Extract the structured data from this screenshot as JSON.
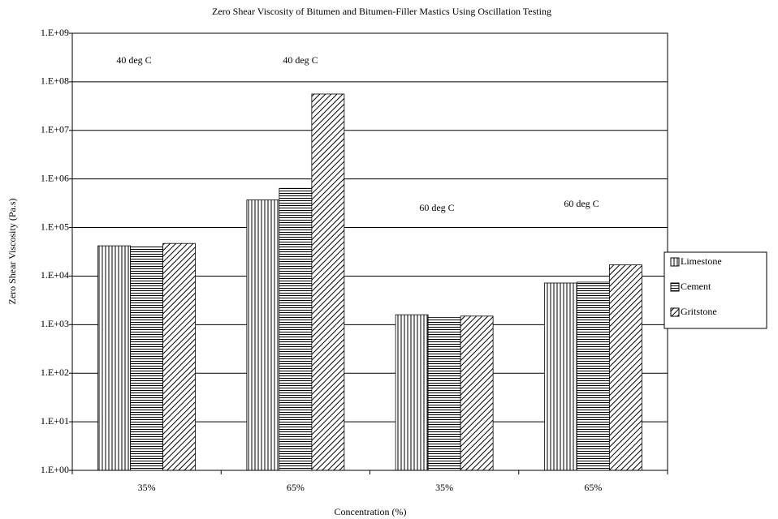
{
  "chart_data": {
    "type": "bar",
    "title": "Zero Shear Viscosity of Bitumen and Bitumen-Filler Mastics Using Oscillation Testing",
    "x_label": "Concentration (%)",
    "y_label": "Zero Shear Viscosity (Pa.s)",
    "categories": [
      "35%",
      "65%",
      "35%",
      "65%"
    ],
    "series": [
      {
        "name": "Limestone",
        "color": "#000000",
        "pattern": "vertical",
        "values": [
          42000,
          370000,
          1600,
          7200
        ]
      },
      {
        "name": "Cement",
        "color": "#000000",
        "pattern": "horizontal",
        "values": [
          40000,
          640000,
          1400,
          7500
        ]
      },
      {
        "name": "Gritstone",
        "color": "#000000",
        "pattern": "diagonal",
        "values": [
          47000,
          56000000,
          1500,
          17000
        ]
      }
    ],
    "annotations": [
      "40 deg C",
      "40 deg C",
      "60 deg C",
      "60 deg C"
    ],
    "log_scale": true,
    "ylim": [
      1,
      1000000000
    ],
    "yticks": [
      {
        "value": 1,
        "label": "1.E+00"
      },
      {
        "value": 10,
        "label": "1.E+01"
      },
      {
        "value": 100,
        "label": "1.E+02"
      },
      {
        "value": 1000,
        "label": "1.E+03"
      },
      {
        "value": 10000,
        "label": "1.E+04"
      },
      {
        "value": 100000,
        "label": "1.E+05"
      },
      {
        "value": 1000000,
        "label": "1.E+06"
      },
      {
        "value": 10000000,
        "label": "1.E+07"
      },
      {
        "value": 100000000,
        "label": "1.E+08"
      },
      {
        "value": 1000000000,
        "label": "1.E+09"
      }
    ],
    "grid": true,
    "legend": "right"
  }
}
